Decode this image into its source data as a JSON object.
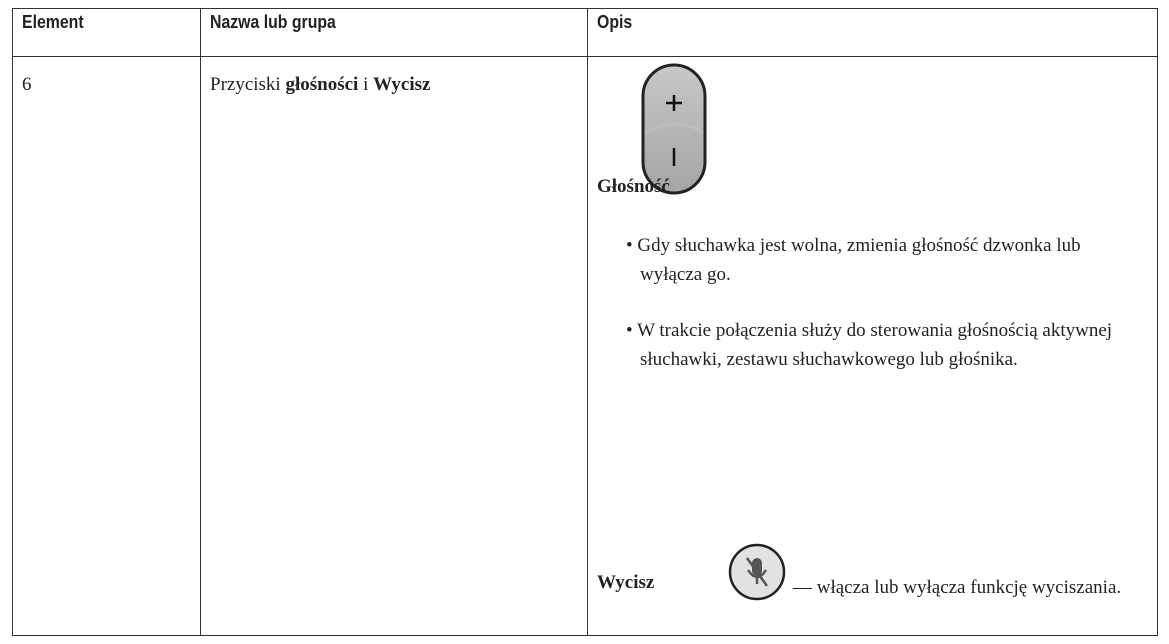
{
  "table": {
    "header": [
      "Element",
      "Nazwa lub grupa",
      "Opis"
    ],
    "rows": [
      {
        "element": "6",
        "name": [
          {
            "text": "Przyciski ",
            "bold": false
          },
          {
            "text": "głośności",
            "bold": true
          },
          {
            "text": " i ",
            "bold": false
          },
          {
            "text": "Wycisz",
            "bold": true
          }
        ],
        "description": {
          "volume_label": "Głośność",
          "bullets": [
            "Gdy słuchawka jest wolna, zmienia głośność dzwonka lub wyłącza go.",
            "W trakcie połączenia służy do sterowania głośnością aktywnej słuchawki, zestawu słuchawkowego lub głośnika."
          ],
          "mute_label": "Wycisz",
          "mute_text": "— włącza lub wyłącza funkcję wyciszania."
        }
      }
    ]
  }
}
